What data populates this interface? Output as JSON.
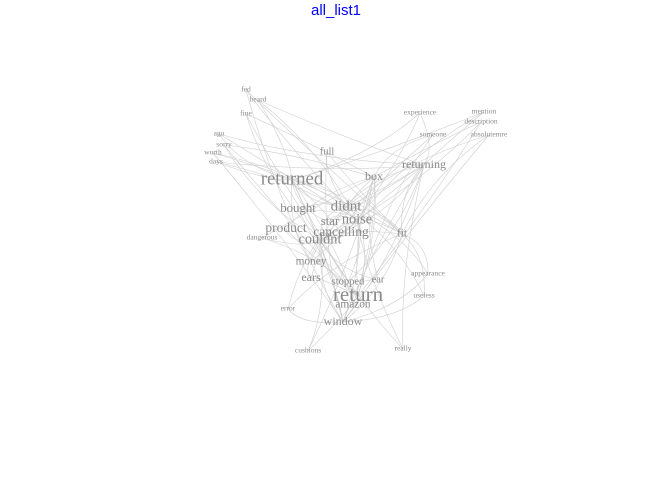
{
  "title": "all_list1",
  "chart_data": {
    "type": "network",
    "title": "all_list1",
    "colors": {
      "title": "#0000ff",
      "label": "#8a8a8a",
      "highlight": "#000000",
      "edge": "#cfcfcf"
    },
    "nodes": [
      {
        "label": "return",
        "weight": 1.0,
        "highlight": true
      },
      {
        "label": "returned",
        "weight": 0.85
      },
      {
        "label": "didnt",
        "weight": 0.6
      },
      {
        "label": "noise",
        "weight": 0.55
      },
      {
        "label": "couldnt",
        "weight": 0.55
      },
      {
        "label": "cancelling",
        "weight": 0.5
      },
      {
        "label": "product",
        "weight": 0.5
      },
      {
        "label": "bought",
        "weight": 0.45
      },
      {
        "label": "star",
        "weight": 0.45
      },
      {
        "label": "box",
        "weight": 0.4
      },
      {
        "label": "returning",
        "weight": 0.4
      },
      {
        "label": "window",
        "weight": 0.4
      },
      {
        "label": "ears",
        "weight": 0.4
      },
      {
        "label": "fit",
        "weight": 0.35
      },
      {
        "label": "money",
        "weight": 0.35
      },
      {
        "label": "amazon",
        "weight": 0.35
      },
      {
        "label": "full",
        "weight": 0.3
      },
      {
        "label": "stopped",
        "weight": 0.3
      },
      {
        "label": "ear",
        "weight": 0.3
      },
      {
        "label": "appearance",
        "weight": 0.1
      },
      {
        "label": "mention",
        "weight": 0.1
      },
      {
        "label": "description",
        "weight": 0.1
      },
      {
        "label": "absolutemre",
        "weight": 0.1
      },
      {
        "label": "experience",
        "weight": 0.1
      },
      {
        "label": "someone",
        "weight": 0.1
      },
      {
        "label": "useless",
        "weight": 0.1
      },
      {
        "label": "really",
        "weight": 0.1
      },
      {
        "label": "cushions",
        "weight": 0.1
      },
      {
        "label": "error",
        "weight": 0.1
      },
      {
        "label": "days",
        "weight": 0.1
      },
      {
        "label": "sorry",
        "weight": 0.1
      },
      {
        "label": "worth",
        "weight": 0.1
      },
      {
        "label": "ago",
        "weight": 0.1
      },
      {
        "label": "dangerous",
        "weight": 0.1
      },
      {
        "label": "fed",
        "weight": 0.1
      },
      {
        "label": "heard",
        "weight": 0.1
      },
      {
        "label": "fine",
        "weight": 0.1
      }
    ]
  }
}
